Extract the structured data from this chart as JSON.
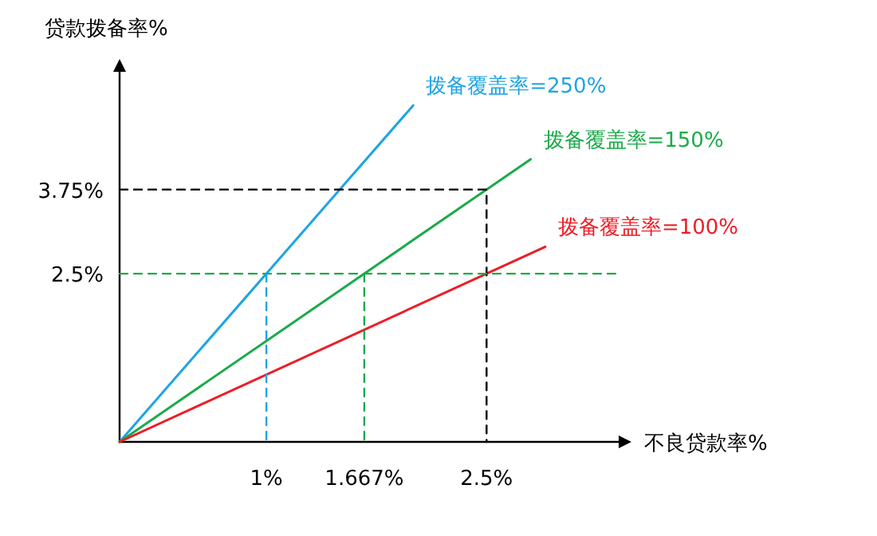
{
  "chart_data": {
    "type": "line",
    "xlabel": "不良贷款率%",
    "ylabel": "贷款拨备率%",
    "xlim": [
      0,
      3.4
    ],
    "ylim": [
      0,
      5.5
    ],
    "xticks": [
      {
        "value": 1,
        "label": "1%"
      },
      {
        "value": 1.667,
        "label": "1.667%"
      },
      {
        "value": 2.5,
        "label": "2.5%"
      }
    ],
    "yticks": [
      {
        "value": 2.5,
        "label": "2.5%"
      },
      {
        "value": 3.75,
        "label": "3.75%"
      }
    ],
    "marker": "none",
    "series": [
      {
        "name": "拨备覆盖率=250%",
        "color": "#1ea4e4",
        "x": [
          0,
          2
        ],
        "values": [
          0,
          5
        ]
      },
      {
        "name": "拨备覆盖率=150%",
        "color": "#1aaa4a",
        "x": [
          0,
          2.8
        ],
        "values": [
          0,
          4.2
        ]
      },
      {
        "name": "拨备覆盖率=100%",
        "color": "#ee1c25",
        "x": [
          0,
          2.9
        ],
        "values": [
          0,
          2.9
        ]
      },
      {
        "color": "#000000",
        "line_style": "dashed",
        "x": [
          0,
          2.5,
          2.5
        ],
        "values": [
          3.75,
          3.75,
          0
        ]
      },
      {
        "color": "#1aaa4a",
        "line_style": "dashed",
        "x": [
          0,
          3.4
        ],
        "values": [
          2.5,
          2.5
        ]
      },
      {
        "color": "#1ea4e4",
        "line_style": "dashed",
        "x": [
          1,
          1
        ],
        "values": [
          2.5,
          0
        ]
      },
      {
        "color": "#1aaa4a",
        "line_style": "dashed",
        "x": [
          1.667,
          1.667
        ],
        "values": [
          2.5,
          0
        ]
      }
    ]
  }
}
